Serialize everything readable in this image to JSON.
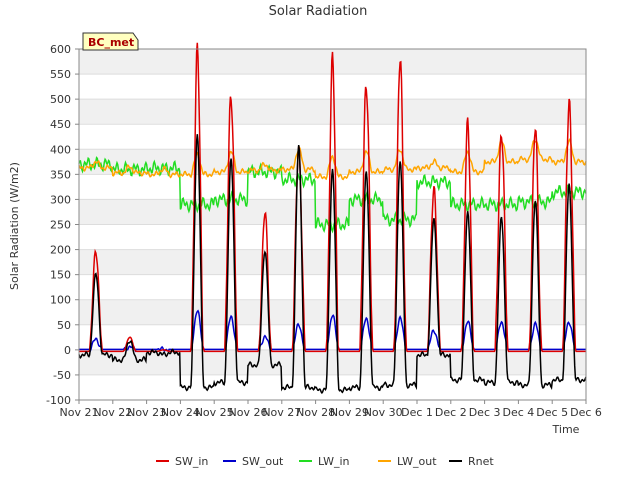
{
  "chart_data": {
    "type": "line",
    "title": "Solar Radiation",
    "xlabel": "Time",
    "ylabel": "Solar Radiation (W/m2)",
    "station_label": "BC_met",
    "ylim": [
      -100,
      600
    ],
    "yticks": [
      -100,
      -50,
      0,
      50,
      100,
      150,
      200,
      250,
      300,
      350,
      400,
      450,
      500,
      550,
      600
    ],
    "xlim": [
      0,
      15
    ],
    "xticks": [
      {
        "pos": 0,
        "label": "Nov 21"
      },
      {
        "pos": 1,
        "label": "Nov 22"
      },
      {
        "pos": 2,
        "label": "Nov 23"
      },
      {
        "pos": 3,
        "label": "Nov 24"
      },
      {
        "pos": 4,
        "label": "Nov 25"
      },
      {
        "pos": 5,
        "label": "Nov 26"
      },
      {
        "pos": 6,
        "label": "Nov 27"
      },
      {
        "pos": 7,
        "label": "Nov 28"
      },
      {
        "pos": 8,
        "label": "Nov 29"
      },
      {
        "pos": 9,
        "label": "Nov 30"
      },
      {
        "pos": 10,
        "label": "Dec 1"
      },
      {
        "pos": 11,
        "label": "Dec 2"
      },
      {
        "pos": 12,
        "label": "Dec 3"
      },
      {
        "pos": 13,
        "label": "Dec 4"
      },
      {
        "pos": 14,
        "label": "Dec 5"
      },
      {
        "pos": 15,
        "label": "Dec 6"
      }
    ],
    "grid": "horizontal bands",
    "legend_position": "bottom",
    "series": [
      {
        "name": "SW_in",
        "color": "#dd0000"
      },
      {
        "name": "SW_out",
        "color": "#0000cc"
      },
      {
        "name": "LW_in",
        "color": "#22dd22"
      },
      {
        "name": "LW_out",
        "color": "#ffa500"
      },
      {
        "name": "Rnet",
        "color": "#000000"
      }
    ],
    "days": [
      {
        "day": 0.5,
        "sw_in": 200,
        "sw_out": 20,
        "rnet": 150,
        "lw_in": 370,
        "lw_out": 375
      },
      {
        "day": 1.5,
        "sw_in": 25,
        "sw_out": 5,
        "rnet": 20,
        "lw_in": 360,
        "lw_out": 365
      },
      {
        "day": 2.5,
        "sw_in": 0,
        "sw_out": 0,
        "rnet": -10,
        "lw_in": 362,
        "lw_out": 362
      },
      {
        "day": 3.5,
        "sw_in": 585,
        "sw_out": 78,
        "rnet": 430,
        "lw_in": 290,
        "lw_out": 390
      },
      {
        "day": 4.5,
        "sw_in": 520,
        "sw_out": 65,
        "rnet": 380,
        "lw_in": 300,
        "lw_out": 395
      },
      {
        "day": 5.5,
        "sw_in": 270,
        "sw_out": 25,
        "rnet": 200,
        "lw_in": 355,
        "lw_out": 370
      },
      {
        "day": 6.5,
        "sw_in": 410,
        "sw_out": 50,
        "rnet": 405,
        "lw_in": 340,
        "lw_out": 400
      },
      {
        "day": 7.5,
        "sw_in": 565,
        "sw_out": 68,
        "rnet": 360,
        "lw_in": 250,
        "lw_out": 385
      },
      {
        "day": 8.5,
        "sw_in": 545,
        "sw_out": 62,
        "rnet": 355,
        "lw_in": 300,
        "lw_out": 395
      },
      {
        "day": 9.5,
        "sw_in": 570,
        "sw_out": 62,
        "rnet": 380,
        "lw_in": 260,
        "lw_out": 400
      },
      {
        "day": 10.5,
        "sw_in": 330,
        "sw_out": 38,
        "rnet": 260,
        "lw_in": 335,
        "lw_out": 375
      },
      {
        "day": 11.5,
        "sw_in": 440,
        "sw_out": 55,
        "rnet": 275,
        "lw_in": 290,
        "lw_out": 395
      },
      {
        "day": 12.5,
        "sw_in": 445,
        "sw_out": 55,
        "rnet": 265,
        "lw_in": 290,
        "lw_out": 415
      },
      {
        "day": 13.5,
        "sw_in": 435,
        "sw_out": 50,
        "rnet": 300,
        "lw_in": 295,
        "lw_out": 420
      },
      {
        "day": 14.5,
        "sw_in": 505,
        "sw_out": 55,
        "rnet": 330,
        "lw_in": 315,
        "lw_out": 415
      }
    ],
    "night_rnet": [
      -10,
      -20,
      -5,
      -75,
      -65,
      -30,
      -75,
      -80,
      -75,
      -70,
      -10,
      -60,
      -65,
      -70,
      -60
    ]
  }
}
